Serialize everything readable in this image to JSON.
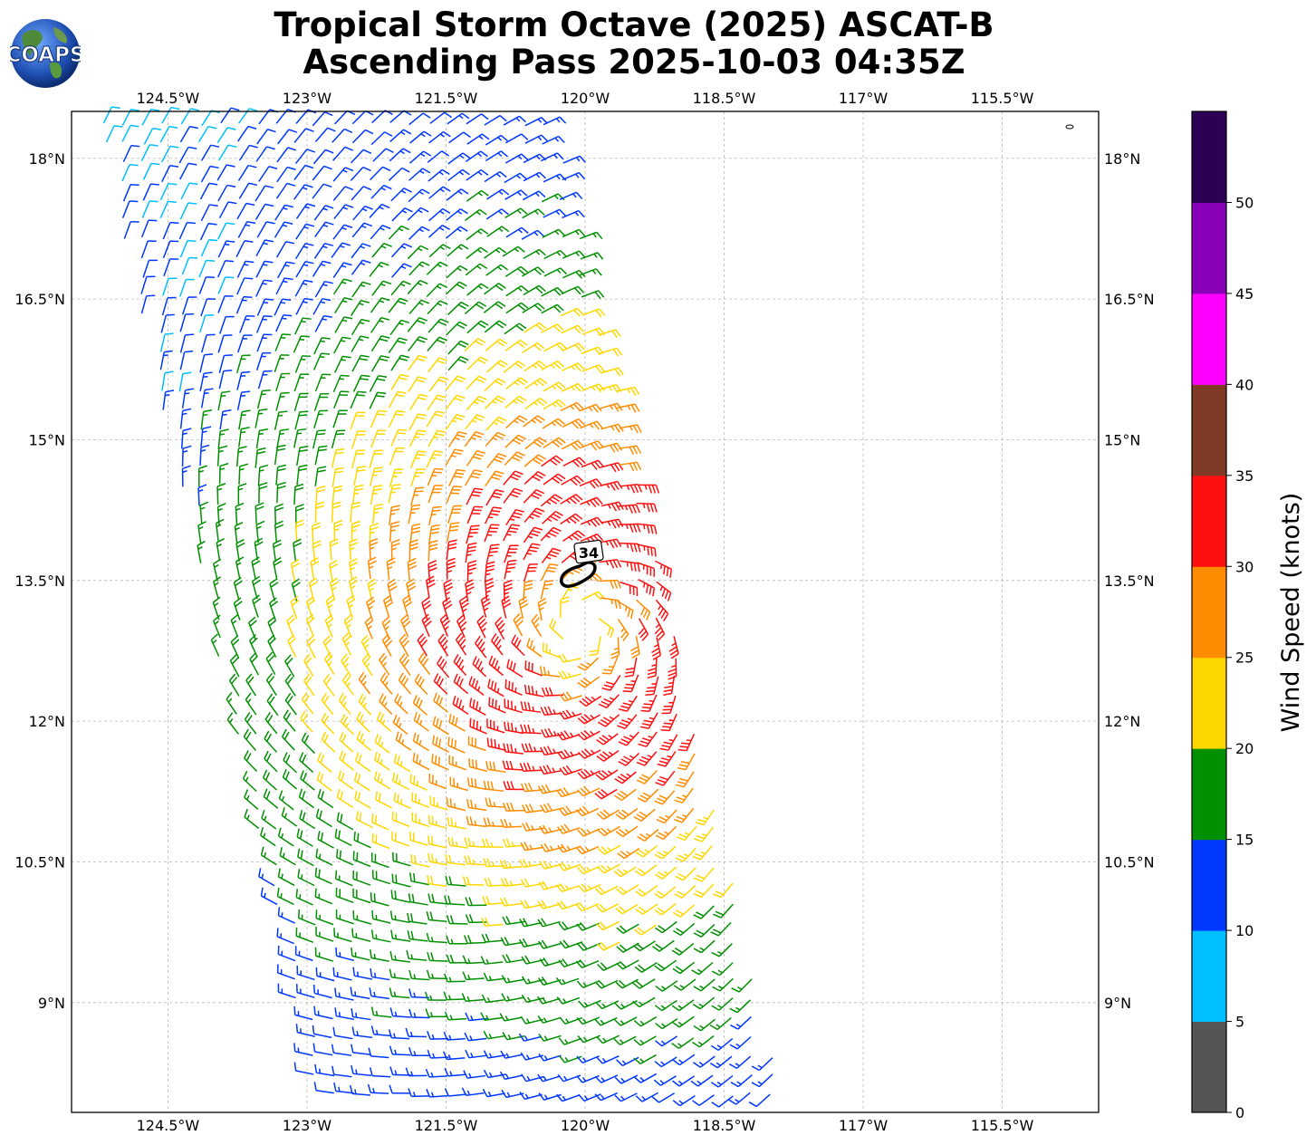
{
  "title_line1": "Tropical Storm Octave (2025) ASCAT-B",
  "title_line2": "Ascending Pass 2025-10-03 04:35Z",
  "logo": {
    "text": "COAPS",
    "icon": "globe-icon"
  },
  "map": {
    "lon_ticks": [
      "124.5°W",
      "123°W",
      "121.5°W",
      "120°W",
      "118.5°W",
      "117°W",
      "115.5°W"
    ],
    "lat_ticks": [
      "18°N",
      "16.5°N",
      "15°N",
      "13.5°N",
      "12°N",
      "10.5°N",
      "9°N"
    ],
    "lon_values": [
      -124.5,
      -123,
      -121.5,
      -120,
      -118.5,
      -117,
      -115.5
    ],
    "lat_values": [
      18,
      16.5,
      15,
      13.5,
      12,
      10.5,
      9
    ],
    "lon_range": [
      -125.54,
      -114.46
    ],
    "lat_range": [
      7.83,
      18.5
    ],
    "gridlines": true,
    "contour_label": "34",
    "storm_center": {
      "lon": -120.0,
      "lat": 13.0
    }
  },
  "colorbar": {
    "label": "Wind Speed (knots)",
    "ticks": [
      "0",
      "5",
      "10",
      "15",
      "20",
      "25",
      "30",
      "35",
      "40",
      "45",
      "50"
    ],
    "colors": [
      "#555555",
      "#00bfff",
      "#0038ff",
      "#009000",
      "#ffd700",
      "#ff8c00",
      "#ff1010",
      "#7f3b26",
      "#ff00ff",
      "#8a00b8",
      "#2c0055"
    ]
  }
}
